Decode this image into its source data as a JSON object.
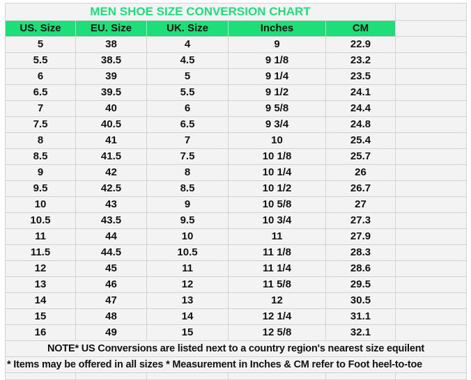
{
  "title": "MEN SHOE SIZE CONVERSION CHART",
  "colors": {
    "accent": "#1ddf7a",
    "background": "#f3f3f3",
    "grid": "#d2d2d2"
  },
  "headers": [
    "US. Size",
    "EU. Size",
    "UK. Size",
    "Inches",
    "CM"
  ],
  "rows": [
    [
      "5",
      "38",
      "4",
      "9",
      "22.9"
    ],
    [
      "5.5",
      "38.5",
      "4.5",
      "9 1/8",
      "23.2"
    ],
    [
      "6",
      "39",
      "5",
      "9 1/4",
      "23.5"
    ],
    [
      "6.5",
      "39.5",
      "5.5",
      "9 1/2",
      "24.1"
    ],
    [
      "7",
      "40",
      "6",
      "9 5/8",
      "24.4"
    ],
    [
      "7.5",
      "40.5",
      "6.5",
      "9 3/4",
      "24.8"
    ],
    [
      "8",
      "41",
      "7",
      "10",
      "25.4"
    ],
    [
      "8.5",
      "41.5",
      "7.5",
      "10 1/8",
      "25.7"
    ],
    [
      "9",
      "42",
      "8",
      "10 1/4",
      "26"
    ],
    [
      "9.5",
      "42.5",
      "8.5",
      "10 1/2",
      "26.7"
    ],
    [
      "10",
      "43",
      "9",
      "10 5/8",
      "27"
    ],
    [
      "10.5",
      "43.5",
      "9.5",
      "10 3/4",
      "27.3"
    ],
    [
      "11",
      "44",
      "10",
      "11",
      "27.9"
    ],
    [
      "11.5",
      "44.5",
      "10.5",
      "11 1/8",
      "28.3"
    ],
    [
      "12",
      "45",
      "11",
      "11 1/4",
      "28.6"
    ],
    [
      "13",
      "46",
      "12",
      "11 5/8",
      "29.5"
    ],
    [
      "14",
      "47",
      "13",
      "12",
      "30.5"
    ],
    [
      "15",
      "48",
      "14",
      "12 1/4",
      "31.1"
    ],
    [
      "16",
      "49",
      "15",
      "12 5/8",
      "32.1"
    ]
  ],
  "notes": [
    "NOTE* US Conversions are listed next to a country region's nearest size equilent",
    "* Items may be offered in all sizes * Measurement in Inches & CM refer to Foot heel-to-toe"
  ]
}
